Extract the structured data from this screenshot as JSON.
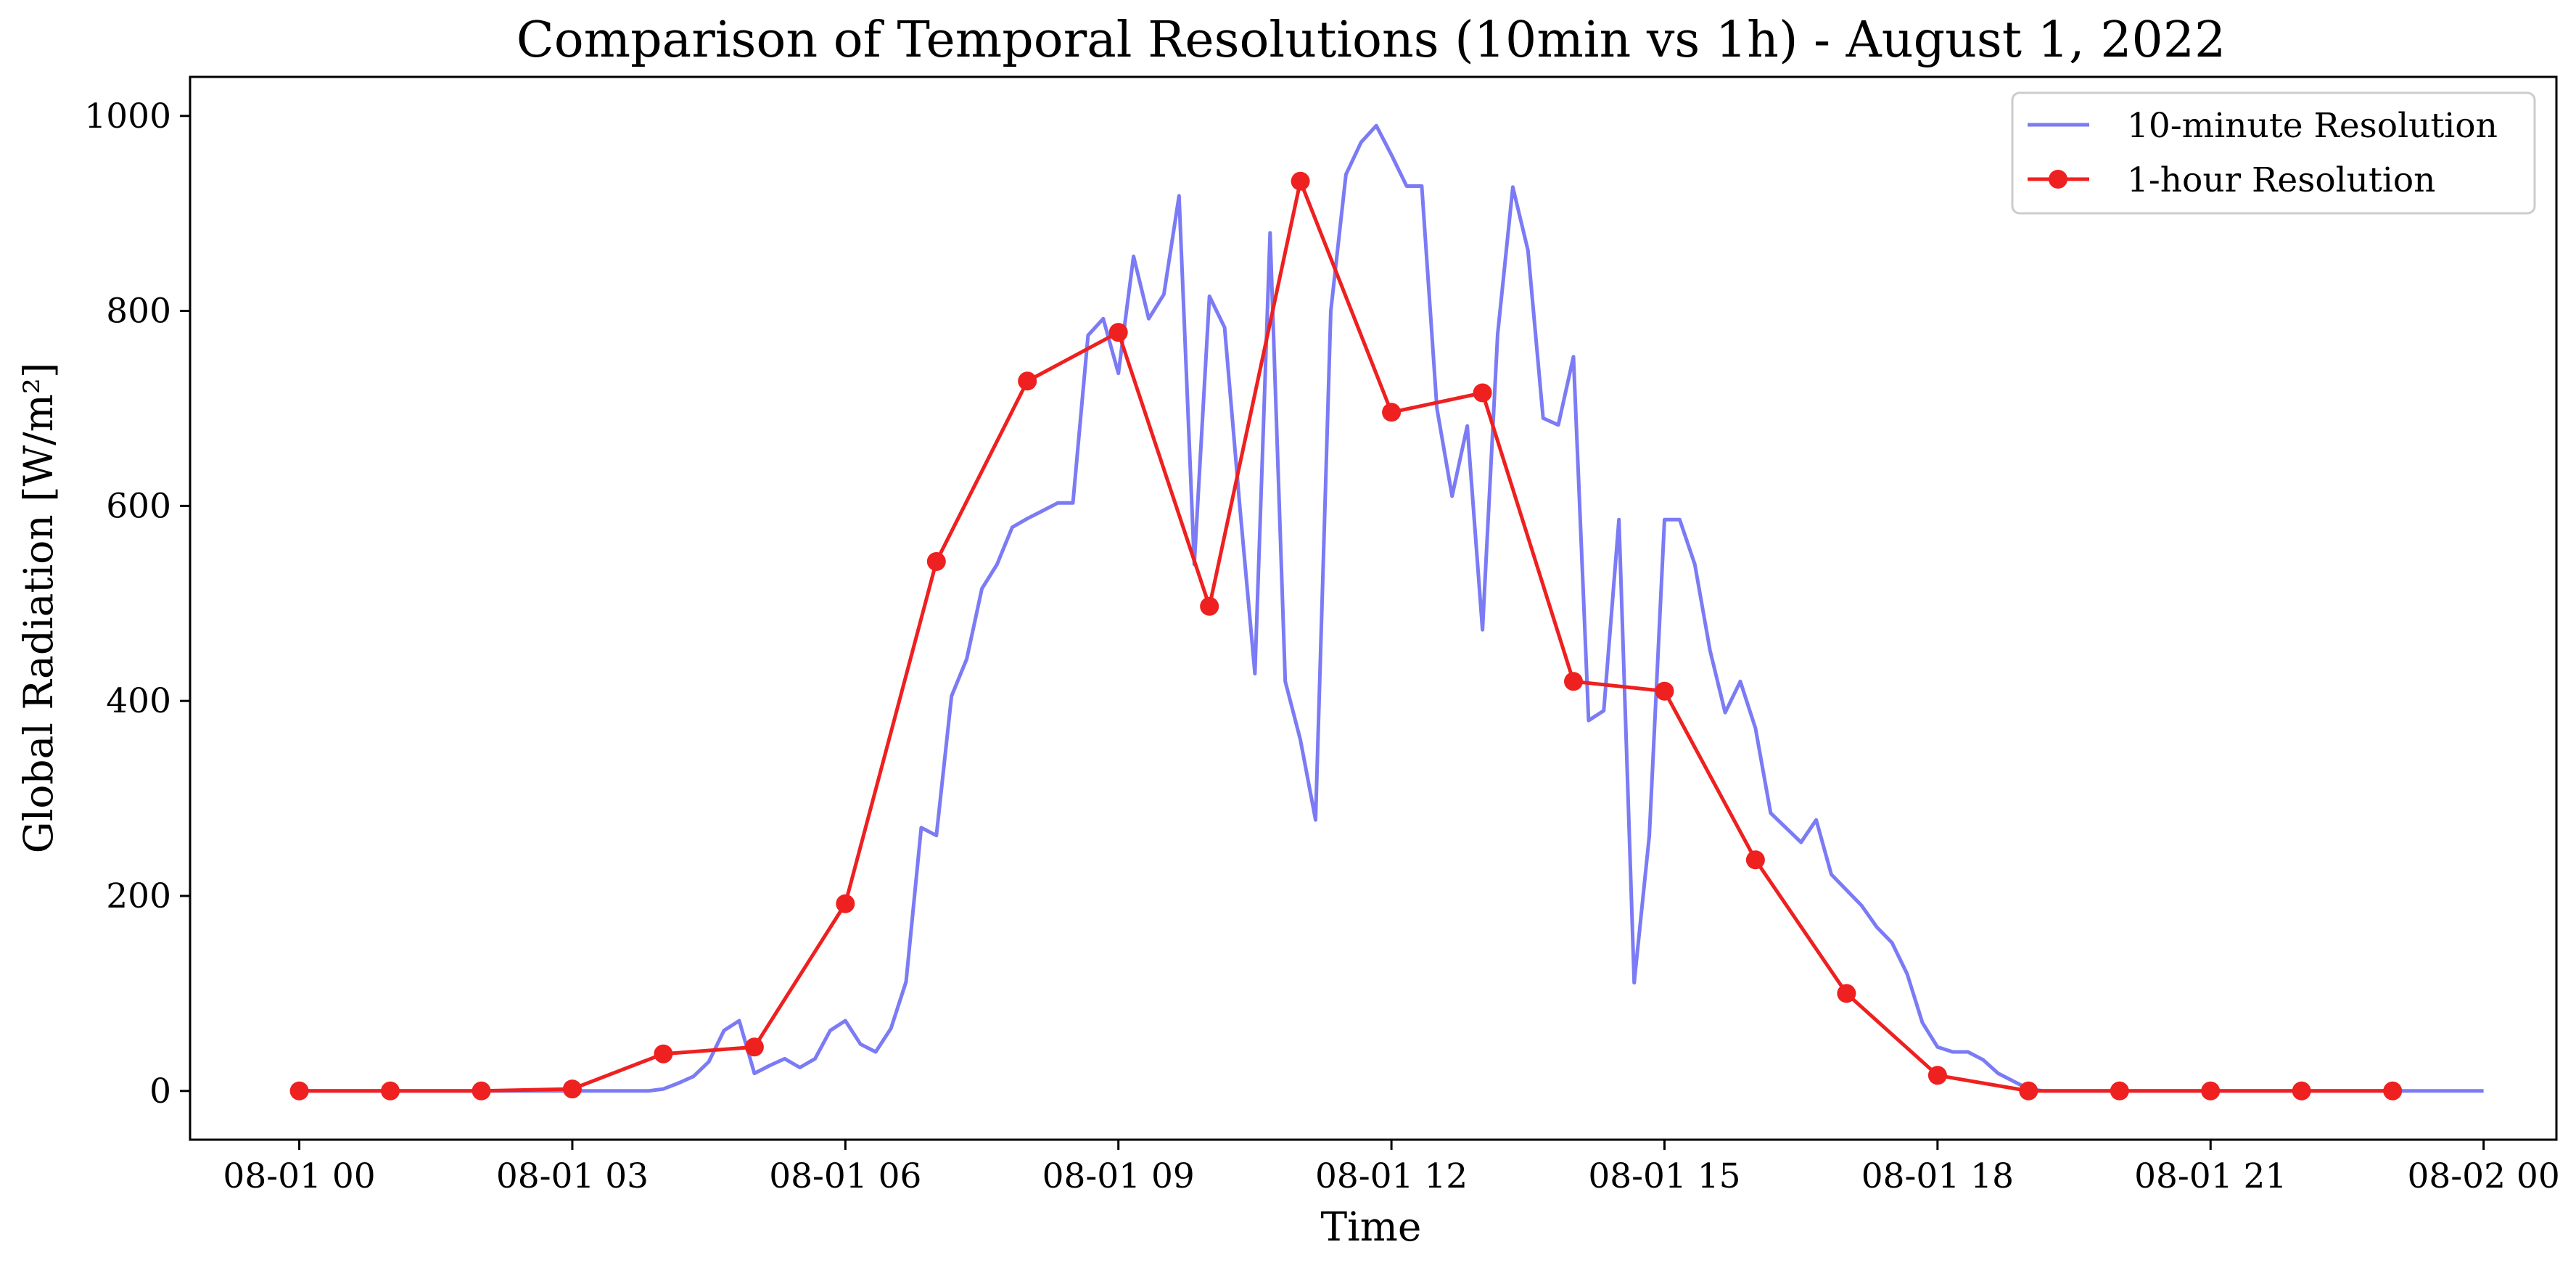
{
  "chart_data": {
    "type": "line",
    "title": "Comparison of Temporal Resolutions (10min vs 1h) - August 1, 2022",
    "xlabel": "Time",
    "ylabel": "Global Radiation [W/m²]",
    "xlim_hours": [
      -1.2,
      24.8
    ],
    "ylim": [
      -50,
      1040
    ],
    "x_ticks": [
      {
        "hour": 0,
        "label": "08-01 00"
      },
      {
        "hour": 3,
        "label": "08-01 03"
      },
      {
        "hour": 6,
        "label": "08-01 06"
      },
      {
        "hour": 9,
        "label": "08-01 09"
      },
      {
        "hour": 12,
        "label": "08-01 12"
      },
      {
        "hour": 15,
        "label": "08-01 15"
      },
      {
        "hour": 18,
        "label": "08-01 18"
      },
      {
        "hour": 21,
        "label": "08-01 21"
      },
      {
        "hour": 24,
        "label": "08-02 00"
      }
    ],
    "y_ticks": [
      {
        "value": 0,
        "label": "0"
      },
      {
        "value": 200,
        "label": "200"
      },
      {
        "value": 400,
        "label": "400"
      },
      {
        "value": 600,
        "label": "600"
      },
      {
        "value": 800,
        "label": "800"
      },
      {
        "value": 1000,
        "label": "1000"
      }
    ],
    "grid": false,
    "legend_position": "top-right",
    "series": [
      {
        "name": "10-minute Resolution",
        "color": "#7b7bf5",
        "marker": "none",
        "start_time": "08-01 00:00",
        "interval_minutes": 10,
        "values": [
          0,
          0,
          0,
          0,
          0,
          0,
          0,
          0,
          0,
          0,
          0,
          0,
          0,
          0,
          0,
          0,
          0,
          0,
          0,
          0,
          0,
          0,
          0,
          0,
          2,
          8,
          15,
          30,
          62,
          72,
          18,
          26,
          33,
          24,
          33,
          62,
          72,
          48,
          40,
          64,
          112,
          270,
          262,
          405,
          443,
          515,
          540,
          578,
          587,
          595,
          603,
          603,
          775,
          792,
          736,
          856,
          792,
          817,
          918,
          540,
          815,
          783,
          600,
          428,
          880,
          420,
          360,
          278,
          800,
          940,
          973,
          990,
          960,
          928,
          928,
          700,
          610,
          682,
          473,
          776,
          927,
          862,
          690,
          683,
          753,
          380,
          390,
          586,
          111,
          262,
          586,
          586,
          540,
          452,
          388,
          420,
          372,
          285,
          270,
          255,
          278,
          222,
          206,
          190,
          168,
          152,
          120,
          70,
          45,
          40,
          40,
          32,
          18,
          10,
          2,
          0,
          0,
          0,
          0,
          0,
          0,
          0,
          0,
          0,
          0,
          0,
          0,
          0,
          0,
          0,
          0,
          0,
          0,
          0,
          0,
          0,
          0,
          0,
          0,
          0,
          0,
          0,
          0,
          0,
          0
        ]
      },
      {
        "name": "1-hour Resolution",
        "color": "#ee2020",
        "marker": "circle",
        "hours": [
          0,
          1,
          2,
          3,
          4,
          5,
          6,
          7,
          8,
          9,
          10,
          11,
          12,
          13,
          14,
          15,
          16,
          17,
          18,
          19,
          20,
          21,
          22,
          23
        ],
        "values": [
          0,
          0,
          0,
          2,
          38,
          45,
          192,
          543,
          728,
          778,
          497,
          933,
          696,
          716,
          420,
          410,
          237,
          100,
          16,
          0,
          0,
          0,
          0,
          0
        ]
      }
    ]
  }
}
